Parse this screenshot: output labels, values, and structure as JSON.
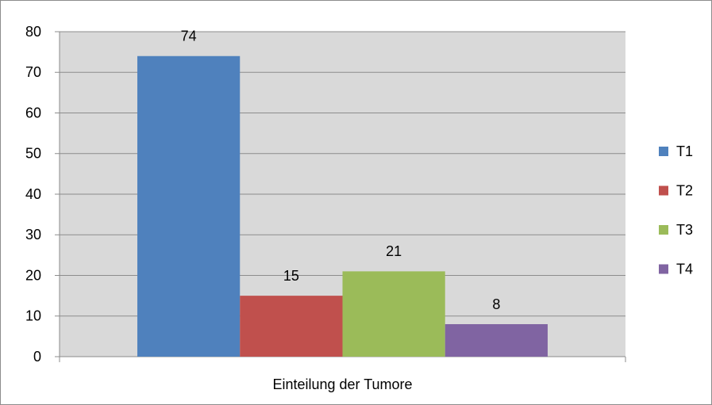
{
  "chart_data": {
    "type": "bar",
    "categories": [
      "Einteilung der Tumore"
    ],
    "series": [
      {
        "name": "T1",
        "color": "#4f81bd",
        "values": [
          74
        ]
      },
      {
        "name": "T2",
        "color": "#c0504d",
        "values": [
          15
        ]
      },
      {
        "name": "T3",
        "color": "#9bbb59",
        "values": [
          21
        ]
      },
      {
        "name": "T4",
        "color": "#8064a2",
        "values": [
          8
        ]
      }
    ],
    "ylim": [
      0,
      80
    ],
    "yticks": [
      0,
      10,
      20,
      30,
      40,
      50,
      60,
      70,
      80
    ],
    "grid": true,
    "legend": "right",
    "data_labels": true
  }
}
